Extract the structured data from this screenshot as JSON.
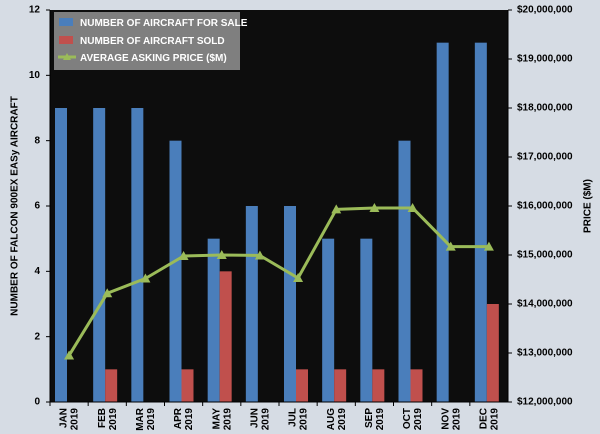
{
  "chart_data": {
    "type": "bar",
    "categories": [
      [
        "JAN",
        "2019"
      ],
      [
        "FEB",
        "2019"
      ],
      [
        "MAR",
        "2019"
      ],
      [
        "APR",
        "2019"
      ],
      [
        "MAY",
        "2019"
      ],
      [
        "JUN",
        "2019"
      ],
      [
        "JUL",
        "2019"
      ],
      [
        "AUG",
        "2019"
      ],
      [
        "SEP",
        "2019"
      ],
      [
        "OCT",
        "2019"
      ],
      [
        "NOV",
        "2019"
      ],
      [
        "DEC",
        "2019"
      ]
    ],
    "series": [
      {
        "name": "NUMBER OF AIRCRAFT FOR SALE",
        "type": "bar",
        "axis": "left",
        "values": [
          9,
          9,
          9,
          8,
          5,
          6,
          6,
          5,
          5,
          8,
          11,
          11
        ]
      },
      {
        "name": "NUMBER OF AIRCRAFT SOLD",
        "type": "bar",
        "axis": "left",
        "values": [
          0,
          1,
          0,
          1,
          4,
          0,
          1,
          1,
          1,
          1,
          0,
          3
        ]
      },
      {
        "name": "AVERAGE ASKING PRICE ($M)",
        "type": "line",
        "axis": "right",
        "values": [
          12950000,
          14220000,
          14520000,
          14980000,
          15000000,
          14990000,
          14530000,
          15930000,
          15960000,
          15960000,
          15170000,
          15170000
        ]
      }
    ],
    "ylabel": "NUMBER OF FALCON 900EX EASy AIRCRAFT",
    "y2label": "PRICE ($M)",
    "ylim": [
      0,
      12
    ],
    "y2lim": [
      12000000,
      20000000
    ],
    "yticks": [
      "0",
      "2",
      "4",
      "6",
      "8",
      "10",
      "12"
    ],
    "y2ticks": [
      "$12,000,000",
      "$13,000,000",
      "$14,000,000",
      "$15,000,000",
      "$16,000,000",
      "$17,000,000",
      "$18,000,000",
      "$19,000,000",
      "$20,000,000"
    ],
    "grid": false,
    "legend": "top-left",
    "colors": {
      "for_sale": "#4a7ebb",
      "sold": "#c0504d",
      "price": "#9bbb59",
      "plot_bg": "#0d0d0d",
      "page_bg": "#d6dce4",
      "legend_bg": "#7f7f7f"
    }
  }
}
